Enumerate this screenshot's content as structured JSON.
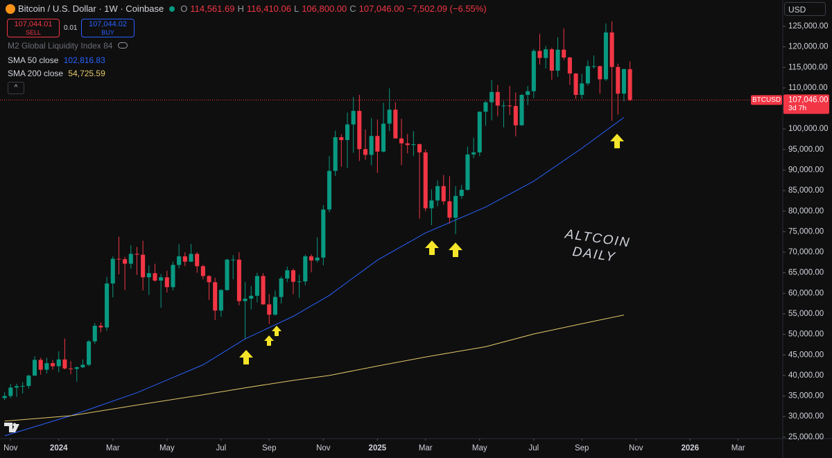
{
  "chart_data": {
    "type": "candlestick",
    "title": "Bitcoin / U.S. Dollar · 1W · Coinbase",
    "header": {
      "o_label": "O",
      "o": "114,561.69",
      "h_label": "H",
      "h": "116,410.06",
      "l_label": "L",
      "l": "106,800.00",
      "c_label": "C",
      "c": "107,046.00",
      "change": "−7,502.09 (−6.55%)"
    },
    "trade": {
      "sell_price": "107,044.01",
      "sell": "SELL",
      "spread": "0.01",
      "buy_price": "107,044.02",
      "buy": "BUY"
    },
    "hidden_indicator": "M2 Global Liquidity Index 84",
    "currency": "USD",
    "watermark": [
      "ALTCOIN",
      "DAILY"
    ],
    "up_color": "#089981",
    "down_color": "#f23645",
    "ohlc": [
      [
        34500,
        35900,
        34000,
        35000
      ],
      [
        35000,
        37900,
        34500,
        37050
      ],
      [
        37050,
        38000,
        34800,
        37400
      ],
      [
        37400,
        38400,
        35600,
        37450
      ],
      [
        37450,
        40200,
        36800,
        39950
      ],
      [
        39950,
        44700,
        39950,
        43800
      ],
      [
        43800,
        44300,
        40200,
        41400
      ],
      [
        41400,
        44300,
        40500,
        43000
      ],
      [
        43000,
        43800,
        41400,
        42250
      ],
      [
        42250,
        45900,
        40750,
        43900
      ],
      [
        43900,
        49000,
        41500,
        41700
      ],
      [
        41700,
        43500,
        40300,
        41600
      ],
      [
        41600,
        42200,
        38500,
        42000
      ],
      [
        42000,
        43900,
        41800,
        42600
      ],
      [
        42600,
        48600,
        42250,
        48300
      ],
      [
        48300,
        52800,
        47700,
        52100
      ],
      [
        52100,
        52900,
        50500,
        51700
      ],
      [
        51700,
        64000,
        50900,
        62400
      ],
      [
        62400,
        69000,
        59000,
        68400
      ],
      [
        68400,
        73800,
        64600,
        68300
      ],
      [
        68300,
        68900,
        60800,
        67200
      ],
      [
        67200,
        71700,
        66000,
        69600
      ],
      [
        69600,
        71300,
        64500,
        69400
      ],
      [
        69400,
        72800,
        60700,
        63900
      ],
      [
        63900,
        66800,
        59600,
        64900
      ],
      [
        64900,
        67200,
        62800,
        63100
      ],
      [
        63100,
        64700,
        56500,
        63900
      ],
      [
        63900,
        65500,
        60200,
        61500
      ],
      [
        61500,
        67700,
        60700,
        66900
      ],
      [
        66900,
        71950,
        66100,
        69000
      ],
      [
        69000,
        70000,
        66600,
        67700
      ],
      [
        67700,
        72000,
        67600,
        69600
      ],
      [
        69600,
        70000,
        65000,
        66600
      ],
      [
        66600,
        66900,
        63400,
        64200
      ],
      [
        64200,
        64400,
        58400,
        62700
      ],
      [
        62700,
        63800,
        53500,
        55800
      ],
      [
        55800,
        61000,
        54300,
        60800
      ],
      [
        60800,
        68400,
        60600,
        68200
      ],
      [
        68200,
        69300,
        63400,
        68200
      ],
      [
        68200,
        70000,
        57100,
        58100
      ],
      [
        58100,
        62700,
        49000,
        58700
      ],
      [
        58700,
        61800,
        56100,
        59400
      ],
      [
        59400,
        65000,
        57800,
        64200
      ],
      [
        64200,
        64900,
        57200,
        57300
      ],
      [
        57300,
        59800,
        52500,
        54800
      ],
      [
        54800,
        60700,
        54600,
        59100
      ],
      [
        59100,
        64100,
        57500,
        63600
      ],
      [
        63600,
        66500,
        62700,
        65600
      ],
      [
        65600,
        66000,
        59800,
        62800
      ],
      [
        62800,
        64500,
        58900,
        62900
      ],
      [
        62900,
        69400,
        62000,
        69000
      ],
      [
        69000,
        69500,
        65100,
        68000
      ],
      [
        68000,
        73600,
        67500,
        68700
      ],
      [
        68700,
        81500,
        66800,
        80400
      ],
      [
        80400,
        93400,
        79700,
        89800
      ],
      [
        89800,
        99600,
        88600,
        98000
      ],
      [
        98000,
        98700,
        90800,
        97300
      ],
      [
        97300,
        104000,
        90500,
        101100
      ],
      [
        101100,
        107800,
        94200,
        104400
      ],
      [
        104400,
        108300,
        92200,
        95100
      ],
      [
        95100,
        99900,
        92500,
        93700
      ],
      [
        93700,
        102700,
        91200,
        98300
      ],
      [
        98300,
        102300,
        89300,
        94500
      ],
      [
        94500,
        106400,
        94300,
        101300
      ],
      [
        101300,
        109900,
        99500,
        104700
      ],
      [
        104700,
        106500,
        97700,
        97700
      ],
      [
        97700,
        102500,
        91200,
        96500
      ],
      [
        96500,
        98800,
        94100,
        96100
      ],
      [
        96100,
        99500,
        93400,
        96300
      ],
      [
        96300,
        96500,
        78200,
        94300
      ],
      [
        94300,
        95000,
        80000,
        80700
      ],
      [
        80700,
        85300,
        76600,
        82600
      ],
      [
        82600,
        87500,
        81200,
        86100
      ],
      [
        86100,
        88800,
        81600,
        82400
      ],
      [
        82400,
        88500,
        77000,
        78400
      ],
      [
        78400,
        86100,
        74400,
        83700
      ],
      [
        83700,
        86400,
        83000,
        85200
      ],
      [
        85200,
        95700,
        85000,
        93800
      ],
      [
        93800,
        97900,
        92900,
        94300
      ],
      [
        94300,
        104300,
        93400,
        104200
      ],
      [
        104200,
        106800,
        100800,
        106500
      ],
      [
        106500,
        111900,
        102100,
        109000
      ],
      [
        109000,
        110700,
        103100,
        105700
      ],
      [
        105700,
        106800,
        100400,
        105700
      ],
      [
        105700,
        110500,
        103400,
        105600
      ],
      [
        105600,
        108900,
        98200,
        100900
      ],
      [
        100900,
        108500,
        100800,
        108300
      ],
      [
        108300,
        110500,
        105800,
        109200
      ],
      [
        109200,
        119500,
        107500,
        119000
      ],
      [
        119000,
        123200,
        115700,
        117300
      ],
      [
        117300,
        120200,
        114700,
        119400
      ],
      [
        119400,
        119800,
        112000,
        114200
      ],
      [
        114200,
        122300,
        112700,
        119300
      ],
      [
        119300,
        124500,
        116800,
        117400
      ],
      [
        117400,
        117600,
        110700,
        113500
      ],
      [
        113500,
        113600,
        107300,
        108300
      ],
      [
        108300,
        113400,
        107300,
        111100
      ],
      [
        111100,
        116700,
        110600,
        115300
      ],
      [
        115300,
        117900,
        114700,
        115300
      ],
      [
        115300,
        115400,
        108600,
        112100
      ],
      [
        112100,
        125700,
        111700,
        123500
      ],
      [
        123500,
        126200,
        102000,
        115100
      ],
      [
        115100,
        115900,
        103500,
        108600
      ],
      [
        108600,
        114000,
        106700,
        114600
      ],
      [
        114561.69,
        116410.06,
        106800,
        107046
      ]
    ],
    "indicators": [
      {
        "name": "SMA 50 close",
        "value_label": "102,816.83",
        "color": "#2962ff",
        "x": [
          0,
          11,
          22,
          33,
          40,
          48,
          54,
          62,
          70,
          80,
          88,
          96,
          103
        ],
        "values": [
          25300,
          30200,
          35800,
          42600,
          48900,
          54400,
          59500,
          68100,
          74700,
          81000,
          87300,
          95300,
          102816.83
        ]
      },
      {
        "name": "SMA 200 close",
        "value_label": "54,725.59",
        "color": "#e6c96b",
        "x": [
          0,
          11,
          22,
          33,
          40,
          48,
          54,
          62,
          70,
          80,
          88,
          96,
          103
        ],
        "values": [
          28900,
          30200,
          32800,
          35300,
          37000,
          38800,
          40000,
          42300,
          44500,
          47000,
          50100,
          52600,
          54725.59
        ]
      }
    ],
    "current_price": {
      "value": 107046,
      "label": "107,046.00",
      "symbol": "BTCUSD",
      "countdown": "3d 7h"
    },
    "xlim": [
      -0.77,
      129.3
    ],
    "xticks": [
      {
        "value": 1,
        "label": "Nov"
      },
      {
        "value": 9,
        "label": "2024"
      },
      {
        "value": 18,
        "label": "Mar"
      },
      {
        "value": 27,
        "label": "May"
      },
      {
        "value": 36,
        "label": "Jul"
      },
      {
        "value": 44,
        "label": "Sep"
      },
      {
        "value": 53,
        "label": "Nov"
      },
      {
        "value": 62,
        "label": "2025"
      },
      {
        "value": 70,
        "label": "Mar"
      },
      {
        "value": 79,
        "label": "May"
      },
      {
        "value": 88,
        "label": "Jul"
      },
      {
        "value": 96,
        "label": "Sep"
      },
      {
        "value": 105,
        "label": "Nov"
      },
      {
        "value": 114,
        "label": "2026"
      },
      {
        "value": 122,
        "label": "Mar"
      }
    ],
    "ylim": [
      24800,
      131400
    ],
    "yticks": [
      {
        "value": 25000,
        "label": "25,000.00"
      },
      {
        "value": 30000,
        "label": "30,000.00"
      },
      {
        "value": 35000,
        "label": "35,000.00"
      },
      {
        "value": 40000,
        "label": "40,000.00"
      },
      {
        "value": 45000,
        "label": "45,000.00"
      },
      {
        "value": 50000,
        "label": "50,000.00"
      },
      {
        "value": 55000,
        "label": "55,000.00"
      },
      {
        "value": 60000,
        "label": "60,000.00"
      },
      {
        "value": 65000,
        "label": "65,000.00"
      },
      {
        "value": 70000,
        "label": "70,000.00"
      },
      {
        "value": 75000,
        "label": "75,000.00"
      },
      {
        "value": 80000,
        "label": "80,000.00"
      },
      {
        "value": 85000,
        "label": "85,000.00"
      },
      {
        "value": 90000,
        "label": "90,000.00"
      },
      {
        "value": 95000,
        "label": "95,000.00"
      },
      {
        "value": 100000,
        "label": "100,000.00"
      },
      {
        "value": 105000,
        "label": "105,000.00"
      },
      {
        "value": 110000,
        "label": "110,000.00"
      },
      {
        "value": 115000,
        "label": "115,000.00"
      },
      {
        "value": 120000,
        "label": "120,000.00"
      },
      {
        "value": 125000,
        "label": "125,000.00"
      }
    ],
    "grid": false
  }
}
